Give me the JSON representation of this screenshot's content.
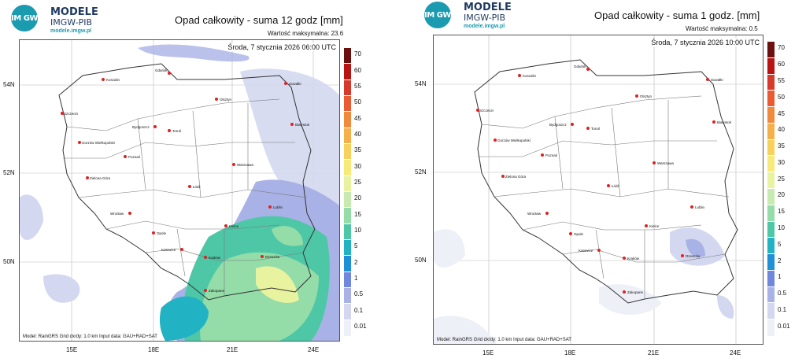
{
  "logo": {
    "mark": "IM GW",
    "name": "MODELE",
    "org": "IMGW-PIB",
    "url": "modele.imgw.pl"
  },
  "panels": [
    {
      "title": "Opad całkowity - suma 12 godz [mm]",
      "max_label": "Wartość maksymalna: 23.6",
      "timestamp": "Środa, 7 stycznia 2026 06:00 UTC",
      "footer": "Model: RainGRS   Grid dx/dy: 1.0 km   Input data: GAU+RAD+SAT"
    },
    {
      "title": "Opad całkowity - suma 1 godz. [mm]",
      "max_label": "Wartość maksymalna: 0.5",
      "timestamp": "Środa, 7 stycznia 2026 10:00 UTC",
      "footer": "Model: RainGRS   Grid dx/dy: 1.0 km   Input data: GAU+RAD+SAT"
    }
  ],
  "axes": {
    "x_ticks": [
      "15E",
      "18E",
      "21E",
      "24E"
    ],
    "y_ticks": [
      "54N",
      "52N",
      "50N"
    ]
  },
  "colorbar": {
    "labels": [
      "70",
      "60",
      "55",
      "50",
      "45",
      "40",
      "35",
      "30",
      "25",
      "20",
      "15",
      "10",
      "5",
      "2",
      "1",
      "0.5",
      "0.1",
      "0.01"
    ],
    "colors": [
      "#6b0f0f",
      "#b81414",
      "#d63a2a",
      "#ea5a33",
      "#f08a3c",
      "#f5b04a",
      "#f8d05c",
      "#f7ea7a",
      "#e8f3a0",
      "#c7eab0",
      "#94dca8",
      "#4ec7a6",
      "#21b3c3",
      "#1f8fd6",
      "#6f87dd",
      "#a9b2e6",
      "#d3d8f0",
      "#eef0f8"
    ]
  },
  "cities": [
    {
      "name": "Gdańsk"
    },
    {
      "name": "Koszalin"
    },
    {
      "name": "Suwałki"
    },
    {
      "name": "Olsztyn"
    },
    {
      "name": "Szczecin"
    },
    {
      "name": "Bydgoszcz"
    },
    {
      "name": "Toruń"
    },
    {
      "name": "Białystok"
    },
    {
      "name": "Gorzów Wielkopolski"
    },
    {
      "name": "Poznań"
    },
    {
      "name": "Warszawa"
    },
    {
      "name": "Zielona Góra"
    },
    {
      "name": "Łódź"
    },
    {
      "name": "Lublin"
    },
    {
      "name": "Wrocław"
    },
    {
      "name": "Opole"
    },
    {
      "name": "Kielce"
    },
    {
      "name": "Katowice"
    },
    {
      "name": "Kraków"
    },
    {
      "name": "Rzeszów"
    },
    {
      "name": "Zakopane"
    }
  ]
}
